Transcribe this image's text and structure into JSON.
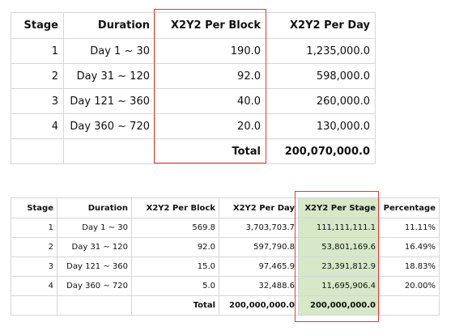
{
  "table1": {
    "headers": [
      "Stage",
      "Duration",
      "X2Y2 Per Block",
      "X2Y2 Per Day"
    ],
    "rows": [
      [
        "1",
        "Day 1 ~ 30",
        "190.0",
        "1,235,000.0"
      ],
      [
        "2",
        "Day 31 ~ 120",
        "92.0",
        "598,000.0"
      ],
      [
        "3",
        "Day 121 ~ 360",
        "40.0",
        "260,000.0"
      ],
      [
        "4",
        "Day 360 ~ 720",
        "20.0",
        "130,000.0"
      ]
    ],
    "total_label": "Total",
    "total_value": "200,070,000.0"
  },
  "table2": {
    "headers": [
      "Stage",
      "Duration",
      "X2Y2 Per Block",
      "X2Y2 Per Day",
      "X2Y2 Per Stage",
      "Percentage"
    ],
    "rows": [
      [
        "1",
        "Day 1 ~ 30",
        "569.8",
        "3,703,703.7",
        "111,111,111.1",
        "11.11%"
      ],
      [
        "2",
        "Day 31 ~ 120",
        "92.0",
        "597,790.8",
        "53,801,169.6",
        "16.49%"
      ],
      [
        "3",
        "Day 121 ~ 360",
        "15.0",
        "97,465.9",
        "23,391,812.9",
        "18.83%"
      ],
      [
        "4",
        "Day 360 ~ 720",
        "5.0",
        "32,488.6",
        "11,695,906.4",
        "20.00%"
      ]
    ],
    "total_label": "Total",
    "total_per_day": "200,000,000.0",
    "total_per_stage": "200,000,000.0"
  },
  "colors": {
    "highlight_border": "#e03a3a",
    "stage_column_fill": "#d6e8c8"
  }
}
